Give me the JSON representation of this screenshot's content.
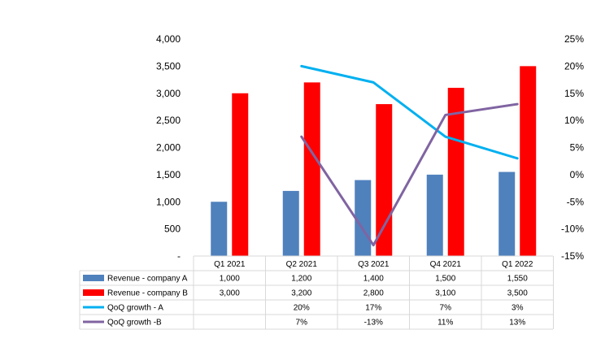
{
  "chart_data": {
    "type": "bar",
    "categories": [
      "Q1 2021",
      "Q2 2021",
      "Q3 2021",
      "Q4 2021",
      "Q1 2022"
    ],
    "series": [
      {
        "name": "Revenue - company A",
        "kind": "bar",
        "axis": "left",
        "color": "#4f81bd",
        "values": [
          1000,
          1200,
          1400,
          1500,
          1550
        ],
        "labels": [
          "1,000",
          "1,200",
          "1,400",
          "1,500",
          "1,550"
        ]
      },
      {
        "name": "Revenue - company B",
        "kind": "bar",
        "axis": "left",
        "color": "#ff0000",
        "values": [
          3000,
          3200,
          2800,
          3100,
          3500
        ],
        "labels": [
          "3,000",
          "3,200",
          "2,800",
          "3,100",
          "3,500"
        ]
      },
      {
        "name": "QoQ growth - A",
        "kind": "line",
        "axis": "right",
        "color": "#00b0f0",
        "values": [
          null,
          20,
          17,
          7,
          3
        ],
        "labels": [
          "",
          "20%",
          "17%",
          "7%",
          "3%"
        ]
      },
      {
        "name": "QoQ growth -B",
        "kind": "line",
        "axis": "right",
        "color": "#8064a2",
        "values": [
          null,
          7,
          -13,
          11,
          13
        ],
        "labels": [
          "",
          "7%",
          "-13%",
          "11%",
          "13%"
        ]
      }
    ],
    "y_left": {
      "ylim": [
        0,
        4000
      ],
      "ticks": [
        {
          "value": 0,
          "label": "-"
        },
        {
          "value": 500,
          "label": "500"
        },
        {
          "value": 1000,
          "label": "1,000"
        },
        {
          "value": 1500,
          "label": "1,500"
        },
        {
          "value": 2000,
          "label": "2,000"
        },
        {
          "value": 2500,
          "label": "2,500"
        },
        {
          "value": 3000,
          "label": "3,000"
        },
        {
          "value": 3500,
          "label": "3,500"
        },
        {
          "value": 4000,
          "label": "4,000"
        }
      ]
    },
    "y_right": {
      "ylim": [
        -15,
        25
      ],
      "ticks": [
        {
          "value": -15,
          "label": "-15%"
        },
        {
          "value": -10,
          "label": "-10%"
        },
        {
          "value": -5,
          "label": "-5%"
        },
        {
          "value": 0,
          "label": "0%"
        },
        {
          "value": 5,
          "label": "5%"
        },
        {
          "value": 10,
          "label": "10%"
        },
        {
          "value": 15,
          "label": "15%"
        },
        {
          "value": 20,
          "label": "20%"
        },
        {
          "value": 25,
          "label": "25%"
        }
      ]
    },
    "grid": false,
    "legend": "data-table"
  }
}
